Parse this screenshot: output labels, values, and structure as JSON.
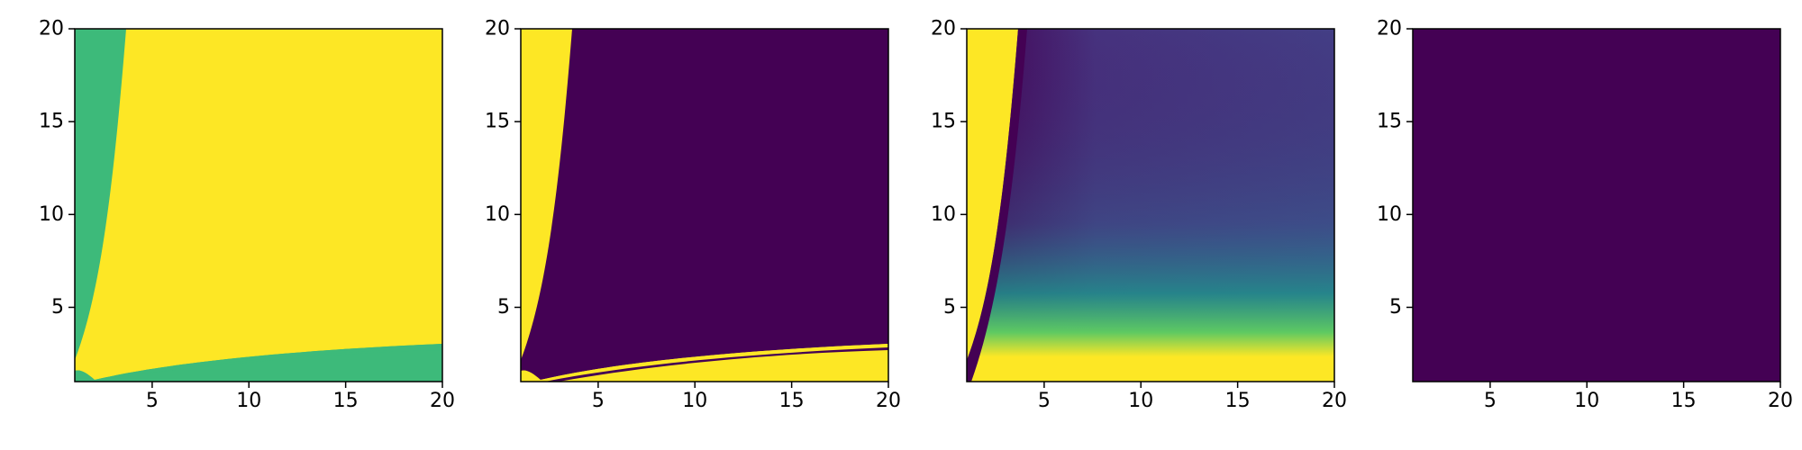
{
  "chart_data": [
    {
      "type": "heatmap",
      "title": "",
      "xlabel": "",
      "ylabel": "",
      "xlim": [
        1,
        20
      ],
      "ylim": [
        1,
        20
      ],
      "x_ticks": [
        5,
        10,
        15,
        20
      ],
      "y_ticks": [
        5,
        10,
        15,
        20
      ],
      "x_tick_labels": [
        "5",
        "10",
        "15",
        "20"
      ],
      "y_tick_labels": [
        "5",
        "10",
        "15",
        "20"
      ],
      "colors": [
        "#3dba7a",
        "#fde725"
      ],
      "grid": false,
      "regions": [
        {
          "color": "#3dba7a",
          "description_value": "background"
        },
        {
          "color": "#fde725",
          "bounded_by": "wedge between left boundary curve and lower curve"
        }
      ]
    },
    {
      "type": "heatmap",
      "title": "",
      "xlabel": "",
      "ylabel": "",
      "xlim": [
        1,
        20
      ],
      "ylim": [
        1,
        20
      ],
      "x_ticks": [
        5,
        10,
        15,
        20
      ],
      "y_ticks": [
        5,
        10,
        15,
        20
      ],
      "x_tick_labels": [
        "5",
        "10",
        "15",
        "20"
      ],
      "y_tick_labels": [
        "5",
        "10",
        "15",
        "20"
      ],
      "colors": [
        "#440154",
        "#fde725"
      ],
      "grid": false
    },
    {
      "type": "heatmap",
      "title": "",
      "xlabel": "",
      "ylabel": "",
      "xlim": [
        1,
        20
      ],
      "ylim": [
        1,
        20
      ],
      "x_ticks": [
        5,
        10,
        15,
        20
      ],
      "y_ticks": [
        5,
        10,
        15,
        20
      ],
      "x_tick_labels": [
        "5",
        "10",
        "15",
        "20"
      ],
      "y_tick_labels": [
        "5",
        "10",
        "15",
        "20"
      ],
      "colors": [
        "#440154",
        "#46327e",
        "#365c8d",
        "#277f8e",
        "#1fa187",
        "#4ac16d",
        "#a0da39",
        "#fde725"
      ],
      "grid": false
    },
    {
      "type": "heatmap",
      "title": "",
      "xlabel": "",
      "ylabel": "",
      "xlim": [
        1,
        20
      ],
      "ylim": [
        1,
        20
      ],
      "x_ticks": [
        5,
        10,
        15,
        20
      ],
      "y_ticks": [
        5,
        10,
        15,
        20
      ],
      "x_tick_labels": [
        "5",
        "10",
        "15",
        "20"
      ],
      "y_tick_labels": [
        "5",
        "10",
        "15",
        "20"
      ],
      "colors": [
        "#440154"
      ],
      "grid": false
    }
  ]
}
